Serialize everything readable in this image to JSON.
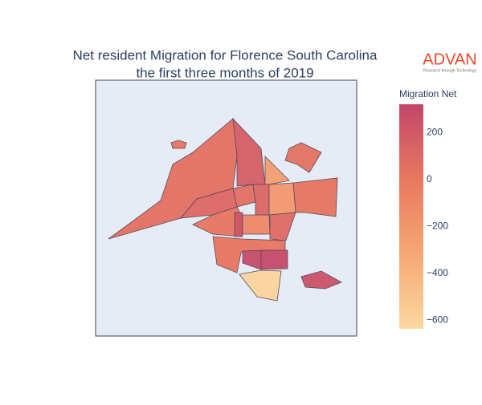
{
  "chart_data": {
    "type": "choropleth",
    "title": [
      "Net resident Migration for Florence South Carolina",
      "the first three months of 2019"
    ],
    "colorbar_title": "Migration Net",
    "colorscale": [
      "#fcd9a1",
      "#f6a775",
      "#e9785f",
      "#c2466a"
    ],
    "clim": [
      -636,
      321
    ],
    "cticks": [
      200,
      0,
      {
        "value": -200,
        "label": "−200"
      },
      {
        "value": -400,
        "label": "−400"
      },
      {
        "value": -600,
        "label": "−600"
      }
    ],
    "values": [
      50,
      170,
      -250,
      40,
      110,
      60,
      120,
      20,
      220,
      20,
      280,
      300,
      -600,
      250,
      20,
      30,
      -200,
      -100,
      90
    ]
  },
  "logo": {
    "name": "ADVAN",
    "tagline": "Research through Technology"
  }
}
